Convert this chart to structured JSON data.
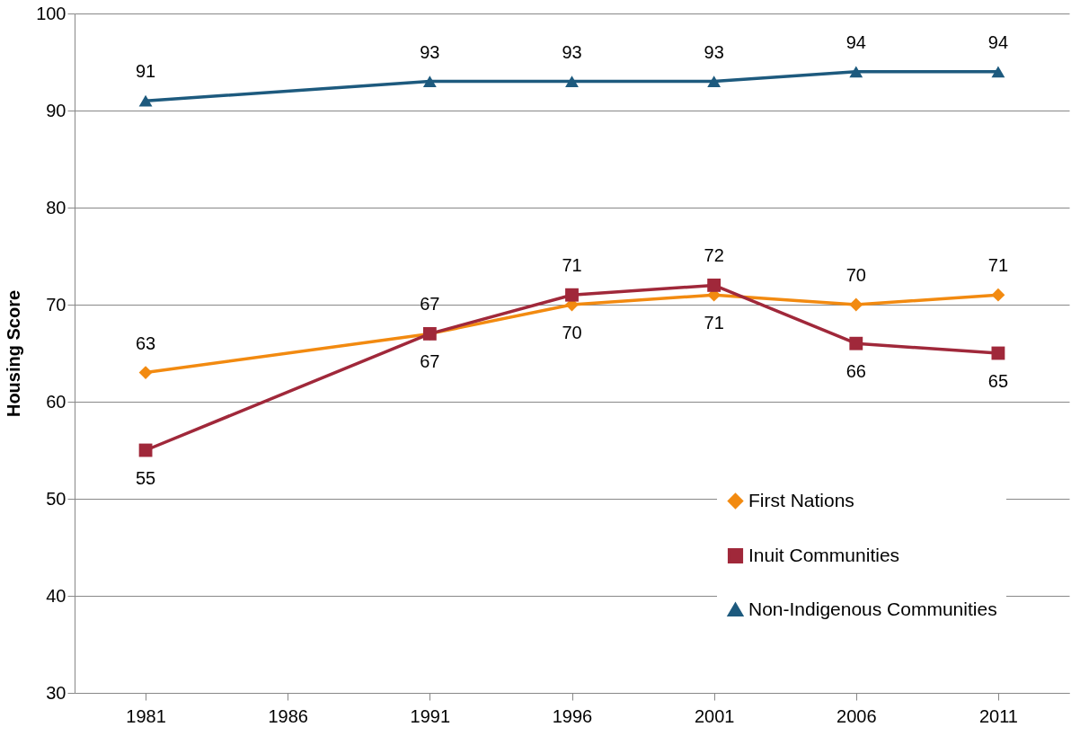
{
  "chart_data": {
    "type": "line",
    "ylabel": "Housing Score",
    "categories": [
      "1981",
      "1986",
      "1991",
      "1996",
      "2001",
      "2006",
      "2011"
    ],
    "series": [
      {
        "name": "First Nations",
        "color": "#f28a10",
        "marker": "diamond",
        "values": [
          63,
          null,
          67,
          70,
          71,
          70,
          71
        ]
      },
      {
        "name": "Inuit Communities",
        "color": "#a0283a",
        "marker": "square",
        "values": [
          55,
          null,
          67,
          71,
          72,
          66,
          65
        ]
      },
      {
        "name": "Non-Indigenous Communities",
        "color": "#1d5a7e",
        "marker": "triangle",
        "values": [
          91,
          null,
          93,
          93,
          93,
          94,
          94
        ]
      }
    ],
    "ylim": [
      30,
      100
    ],
    "yticks": [
      30,
      40,
      50,
      60,
      70,
      80,
      90,
      100
    ],
    "grid": "y",
    "legend": "bottom right",
    "data_labels": true,
    "line_style": "solid"
  }
}
